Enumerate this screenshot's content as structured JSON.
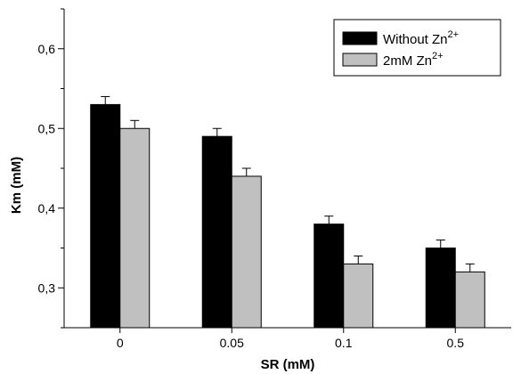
{
  "chart_data": {
    "type": "bar",
    "xlabel": "SR (mM)",
    "ylabel": "Km (mM)",
    "categories": [
      "0",
      "0.05",
      "0.1",
      "0.5"
    ],
    "ylim": [
      0.25,
      0.65
    ],
    "yticks": [
      "0,3",
      "0,4",
      "0,5",
      "0,6"
    ],
    "ytick_values": [
      0.3,
      0.4,
      0.5,
      0.6
    ],
    "legend_position": "top-right",
    "series": [
      {
        "name": "Without Zn",
        "name_sup": "2+",
        "color": "#000000",
        "values": [
          0.53,
          0.49,
          0.38,
          0.35
        ],
        "errors": [
          0.01,
          0.01,
          0.01,
          0.01
        ]
      },
      {
        "name": "2mM Zn",
        "name_sup": "2+",
        "color": "#c0c0c0",
        "values": [
          0.5,
          0.44,
          0.33,
          0.32
        ],
        "errors": [
          0.01,
          0.01,
          0.01,
          0.01
        ]
      }
    ]
  }
}
